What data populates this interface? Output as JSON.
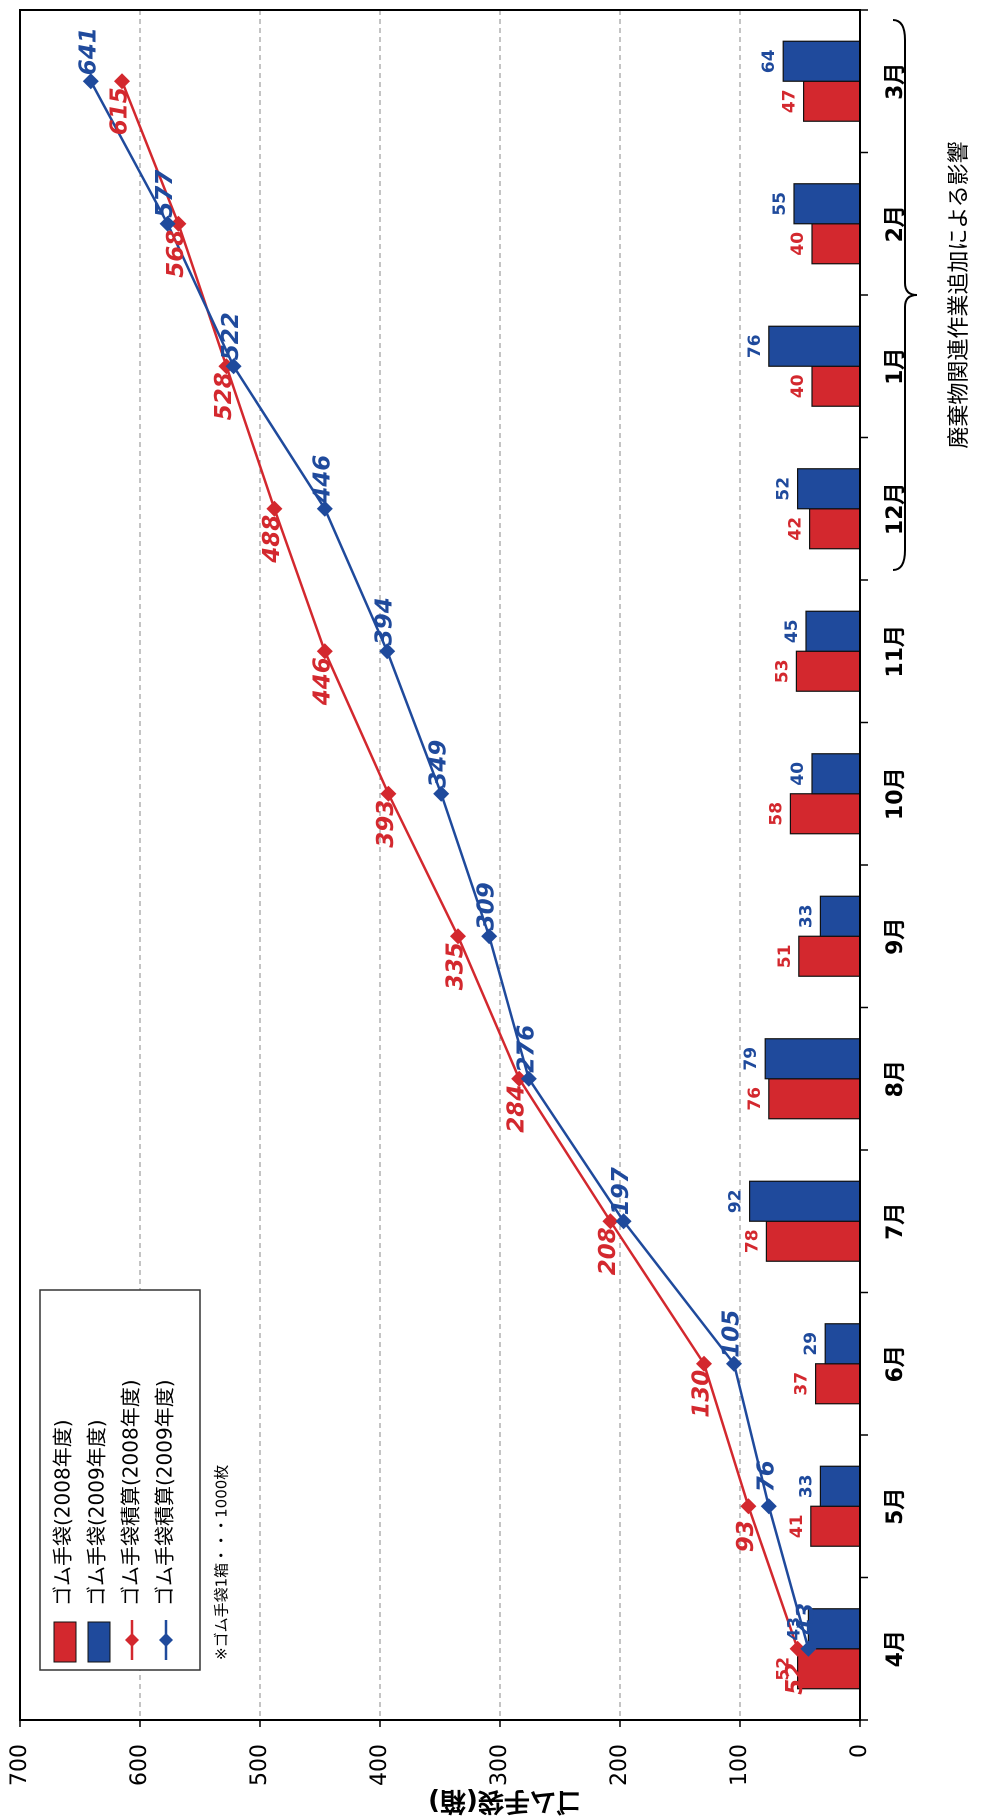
{
  "chart_data": {
    "type": "bar",
    "ylabel": "ゴム手袋(箱)",
    "ylim": [
      0,
      700
    ],
    "yticks": [
      0,
      100,
      200,
      300,
      400,
      500,
      600,
      700
    ],
    "grid": true,
    "categories": [
      "4月",
      "5月",
      "6月",
      "7月",
      "8月",
      "9月",
      "10月",
      "11月",
      "12月",
      "1月",
      "2月",
      "3月"
    ],
    "series": [
      {
        "name": "ゴム手袋(2008年度)",
        "type": "bar",
        "color": "#d3282e",
        "values": [
          52,
          41,
          37,
          78,
          76,
          51,
          58,
          53,
          42,
          40,
          40,
          47
        ]
      },
      {
        "name": "ゴム手袋(2009年度)",
        "type": "bar",
        "color": "#1f4a9c",
        "values": [
          43,
          33,
          29,
          92,
          79,
          33,
          40,
          45,
          52,
          76,
          55,
          64
        ]
      },
      {
        "name": "ゴム手袋積算(2008年度)",
        "type": "line",
        "color": "#d3282e",
        "values": [
          52,
          93,
          130,
          208,
          284,
          335,
          393,
          446,
          488,
          528,
          568,
          615
        ]
      },
      {
        "name": "ゴム手袋積算(2009年度)",
        "type": "line",
        "color": "#1f4a9c",
        "values": [
          43,
          76,
          105,
          197,
          276,
          309,
          349,
          394,
          446,
          522,
          577,
          641
        ]
      }
    ],
    "legend_position": "bottom-left",
    "note": "※ゴム手袋1箱・・・1000枚",
    "annotation": "廃棄物関連作業追加による影響"
  }
}
